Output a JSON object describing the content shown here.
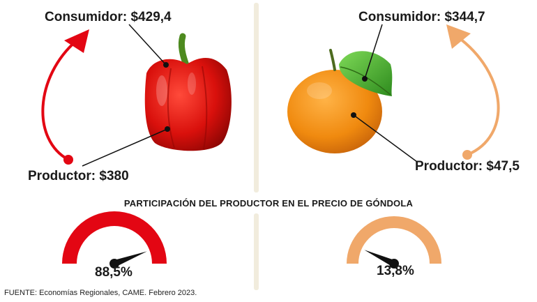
{
  "left": {
    "consumer_label": "Consumidor: $429,4",
    "producer_label": "Productor: $380",
    "share_label": "88,5%",
    "share_percent": 88.5,
    "product_icon": "red-bell-pepper",
    "accent_color": "#e30613"
  },
  "right": {
    "consumer_label": "Consumidor: $344,7",
    "producer_label": "Productor: $47,5",
    "share_label": "13,8%",
    "share_percent": 13.8,
    "product_icon": "tangerine",
    "accent_color": "#f0a86a"
  },
  "section_title": "PARTICIPACIÓN DEL PRODUCTOR EN EL PRECIO DE GÓNDOLA",
  "source": "FUENTE: Economías Regionales, CAME. Febrero 2023."
}
